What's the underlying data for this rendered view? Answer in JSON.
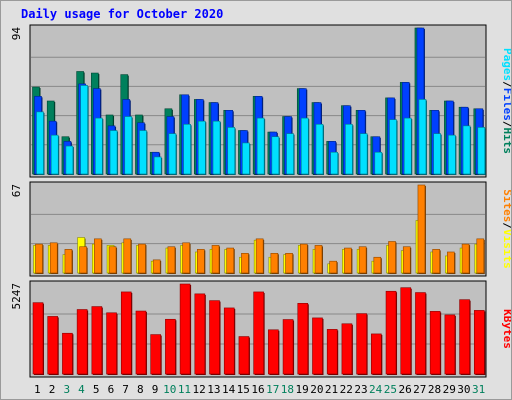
{
  "title": "Daily usage for October 2020",
  "colors": {
    "hits": "#00805c",
    "files": "#0040ff",
    "pages": "#00e0ff",
    "visits": "#ffff00",
    "sites": "#ff8000",
    "kbytes": "#ff0000",
    "title": "#0000ff",
    "weekend_label": "#00805c",
    "weekday_label": "#000000",
    "panel_bg": "#c0c0c0",
    "frame_bg": "#e0e0e0",
    "grid": "#888888"
  },
  "chart_data": [
    {
      "type": "bar",
      "name": "hits-files-pages",
      "side_labels": [
        "Pages",
        "/",
        "Files",
        "/",
        "Hits"
      ],
      "ymax_label": "94",
      "ylim": [
        0,
        94
      ],
      "categories": [
        "1",
        "2",
        "3",
        "4",
        "5",
        "6",
        "7",
        "8",
        "9",
        "10",
        "11",
        "12",
        "13",
        "14",
        "15",
        "16",
        "17",
        "18",
        "19",
        "20",
        "21",
        "22",
        "23",
        "24",
        "25",
        "26",
        "27",
        "28",
        "29",
        "30",
        "31"
      ],
      "weekend_days": [
        "3",
        "4",
        "10",
        "11",
        "17",
        "18",
        "24",
        "25",
        "31"
      ],
      "series": [
        {
          "name": "Hits",
          "values": [
            56,
            47,
            24,
            66,
            65,
            38,
            64,
            38,
            14,
            42,
            51,
            48,
            46,
            41,
            28,
            50,
            27,
            37,
            55,
            46,
            21,
            44,
            41,
            24,
            49,
            59,
            94,
            41,
            47,
            43,
            42
          ]
        },
        {
          "name": "Files",
          "values": [
            50,
            34,
            21,
            58,
            55,
            31,
            48,
            33,
            14,
            37,
            51,
            48,
            46,
            41,
            28,
            50,
            27,
            37,
            55,
            46,
            21,
            44,
            41,
            24,
            49,
            59,
            94,
            41,
            47,
            43,
            42
          ]
        },
        {
          "name": "Pages",
          "values": [
            40,
            25,
            18,
            57,
            36,
            28,
            37,
            28,
            11,
            26,
            32,
            34,
            34,
            30,
            20,
            36,
            24,
            26,
            36,
            32,
            14,
            32,
            26,
            14,
            35,
            36,
            48,
            26,
            25,
            31,
            30
          ]
        }
      ]
    },
    {
      "type": "bar",
      "name": "sites-visits",
      "side_labels": [
        "Sites",
        "/",
        "Visits"
      ],
      "ymax_label": "67",
      "ylim": [
        0,
        67
      ],
      "categories": [
        "1",
        "2",
        "3",
        "4",
        "5",
        "6",
        "7",
        "8",
        "9",
        "10",
        "11",
        "12",
        "13",
        "14",
        "15",
        "16",
        "17",
        "18",
        "19",
        "20",
        "21",
        "22",
        "23",
        "24",
        "25",
        "26",
        "27",
        "28",
        "29",
        "30",
        "31"
      ],
      "series": [
        {
          "name": "Sites",
          "values": [
            22,
            23,
            18,
            20,
            26,
            20,
            26,
            22,
            10,
            20,
            23,
            18,
            21,
            19,
            15,
            26,
            15,
            15,
            22,
            21,
            9,
            19,
            20,
            12,
            24,
            20,
            67,
            18,
            16,
            22,
            26
          ]
        },
        {
          "name": "Visits",
          "values": [
            21,
            21,
            14,
            27,
            22,
            21,
            23,
            21,
            9,
            19,
            21,
            16,
            18,
            18,
            12,
            25,
            12,
            14,
            21,
            18,
            7,
            18,
            18,
            9,
            21,
            17,
            40,
            16,
            13,
            19,
            22
          ]
        }
      ]
    },
    {
      "type": "bar",
      "name": "kbytes",
      "side_labels": [
        "KBytes"
      ],
      "ymax_label": "5247",
      "ylim": [
        0,
        5247
      ],
      "categories": [
        "1",
        "2",
        "3",
        "4",
        "5",
        "6",
        "7",
        "8",
        "9",
        "10",
        "11",
        "12",
        "13",
        "14",
        "15",
        "16",
        "17",
        "18",
        "19",
        "20",
        "21",
        "22",
        "23",
        "24",
        "25",
        "26",
        "27",
        "28",
        "29",
        "30",
        "31"
      ],
      "series": [
        {
          "name": "KBytes",
          "values": [
            4160,
            3356,
            2377,
            3760,
            3932,
            3569,
            4785,
            3671,
            2299,
            3191,
            5247,
            4672,
            4279,
            3852,
            2184,
            4785,
            2578,
            3176,
            4121,
            3270,
            2602,
            2929,
            3522,
            2337,
            4825,
            5032,
            4749,
            3652,
            3445,
            4334,
            3708
          ]
        }
      ]
    }
  ]
}
